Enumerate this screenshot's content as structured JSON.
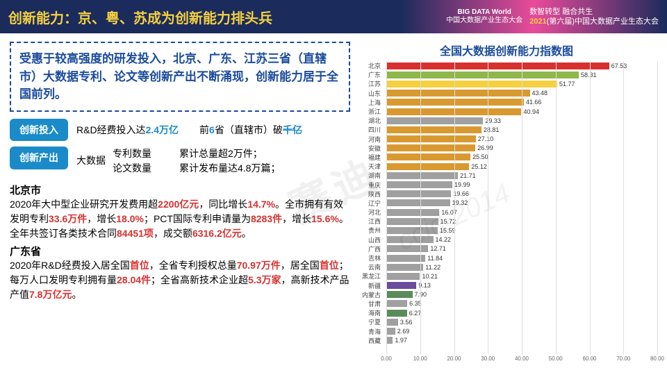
{
  "header": {
    "title": "创新能力：京、粤、苏成为创新能力排头兵",
    "logo_main": "BIG DATA World",
    "logo_sub": "中国大数据产业生态大会",
    "tagline1": "数智转型 融合共生",
    "tagline2_year": "2021",
    "tagline2_rest": "(第六届)中国大数据产业生态大会"
  },
  "callout": "受惠于较高强度的研发投入，北京、广东、江苏三省（直辖市）大数据专利、论文等创新产出不断涌现，创新能力居于全国前列。",
  "input": {
    "tag": "创新投入",
    "t1a": "R&D经费投入达",
    "t1b": "2.4万亿",
    "t2a": "前",
    "t2b": "6",
    "t2c": "省（直辖市）破",
    "t2d": "千亿"
  },
  "output": {
    "tag": "创新产出",
    "label": "大数据",
    "l1a": "专利数量",
    "l1b": "累计总量超2万件；",
    "l2a": "论文数量",
    "l2b": "累计发布量达4.8万篇；"
  },
  "bj": {
    "name": "北京市",
    "p": [
      {
        "t": "2020年大中型企业研究开发费用超"
      },
      {
        "t": "2200亿元",
        "c": "red"
      },
      {
        "t": "，同比增长"
      },
      {
        "t": "14.7%",
        "c": "red"
      },
      {
        "t": "。全市拥有有效发明专利"
      },
      {
        "t": "33.6万件",
        "c": "red"
      },
      {
        "t": "，增长"
      },
      {
        "t": "18.0%",
        "c": "red"
      },
      {
        "t": "；PCT国际专利申请量为"
      },
      {
        "t": "8283件",
        "c": "red"
      },
      {
        "t": "，增长"
      },
      {
        "t": "15.6%",
        "c": "red"
      },
      {
        "t": "。全年共签订各类技术合同"
      },
      {
        "t": "84451项",
        "c": "red"
      },
      {
        "t": "，成交额"
      },
      {
        "t": "6316.2亿元",
        "c": "red"
      },
      {
        "t": "。"
      }
    ]
  },
  "gd": {
    "name": "广东省",
    "p": [
      {
        "t": "2020年R&D经费投入居全国"
      },
      {
        "t": "首位",
        "c": "red"
      },
      {
        "t": "，全省专利授权总量"
      },
      {
        "t": "70.97万件",
        "c": "red"
      },
      {
        "t": "，居全国"
      },
      {
        "t": "首位",
        "c": "red"
      },
      {
        "t": "；每万人口发明专利拥有量"
      },
      {
        "t": "28.04件",
        "c": "red"
      },
      {
        "t": "；全省高新技术企业超"
      },
      {
        "t": "5.3万家",
        "c": "red"
      },
      {
        "t": "，高新技术产品产值"
      },
      {
        "t": "7.8万亿元",
        "c": "red"
      },
      {
        "t": "。"
      }
    ]
  },
  "chart": {
    "title": "全国大数据创新能力指数图",
    "xmax": 80,
    "xticks": [
      "0.00",
      "10.00",
      "20.00",
      "30.00",
      "40.00",
      "50.00",
      "60.00",
      "70.00",
      "80.00"
    ],
    "bars": [
      {
        "label": "北京",
        "value": 67.53,
        "color": "#d83030"
      },
      {
        "label": "广东",
        "value": 58.31,
        "color": "#8fb84a"
      },
      {
        "label": "江苏",
        "value": 51.77,
        "color": "#f5d040"
      },
      {
        "label": "山东",
        "value": 43.48,
        "color": "#d89a30"
      },
      {
        "label": "上海",
        "value": 41.66,
        "color": "#d89a30"
      },
      {
        "label": "浙江",
        "value": 40.94,
        "color": "#d89a30"
      },
      {
        "label": "湖北",
        "value": 29.33,
        "color": "#a0a0a0"
      },
      {
        "label": "四川",
        "value": 28.81,
        "color": "#d89a30"
      },
      {
        "label": "河南",
        "value": 27.1,
        "color": "#d89a30"
      },
      {
        "label": "安徽",
        "value": 26.99,
        "color": "#d89a30"
      },
      {
        "label": "福建",
        "value": 25.5,
        "color": "#d89a30"
      },
      {
        "label": "天津",
        "value": 25.12,
        "color": "#d89a30"
      },
      {
        "label": "湖南",
        "value": 21.71,
        "color": "#a0a0a0"
      },
      {
        "label": "重庆",
        "value": 19.99,
        "color": "#a0a0a0"
      },
      {
        "label": "陕西",
        "value": 19.66,
        "color": "#a0a0a0"
      },
      {
        "label": "辽宁",
        "value": 19.32,
        "color": "#a0a0a0"
      },
      {
        "label": "河北",
        "value": 16.07,
        "color": "#a0a0a0"
      },
      {
        "label": "江西",
        "value": 15.72,
        "color": "#a0a0a0"
      },
      {
        "label": "贵州",
        "value": 15.59,
        "color": "#a0a0a0"
      },
      {
        "label": "山西",
        "value": 14.22,
        "color": "#a0a0a0"
      },
      {
        "label": "广西",
        "value": 12.71,
        "color": "#a0a0a0"
      },
      {
        "label": "吉林",
        "value": 11.84,
        "color": "#a0a0a0"
      },
      {
        "label": "云南",
        "value": 11.22,
        "color": "#a0a0a0"
      },
      {
        "label": "黑龙江",
        "value": 10.21,
        "color": "#a0a0a0"
      },
      {
        "label": "新疆",
        "value": 9.13,
        "color": "#6a4b9c"
      },
      {
        "label": "内蒙古",
        "value": 7.9,
        "color": "#5a8b5a"
      },
      {
        "label": "甘肃",
        "value": 6.35,
        "color": "#a0a0a0"
      },
      {
        "label": "海南",
        "value": 6.27,
        "color": "#5a8b5a"
      },
      {
        "label": "宁夏",
        "value": 3.56,
        "color": "#a0a0a0"
      },
      {
        "label": "青海",
        "value": 2.69,
        "color": "#a0a0a0"
      },
      {
        "label": "西藏",
        "value": 1.97,
        "color": "#a0a0a0"
      }
    ]
  },
  "watermark": "赛迪",
  "watermark2": "ccid-2014"
}
